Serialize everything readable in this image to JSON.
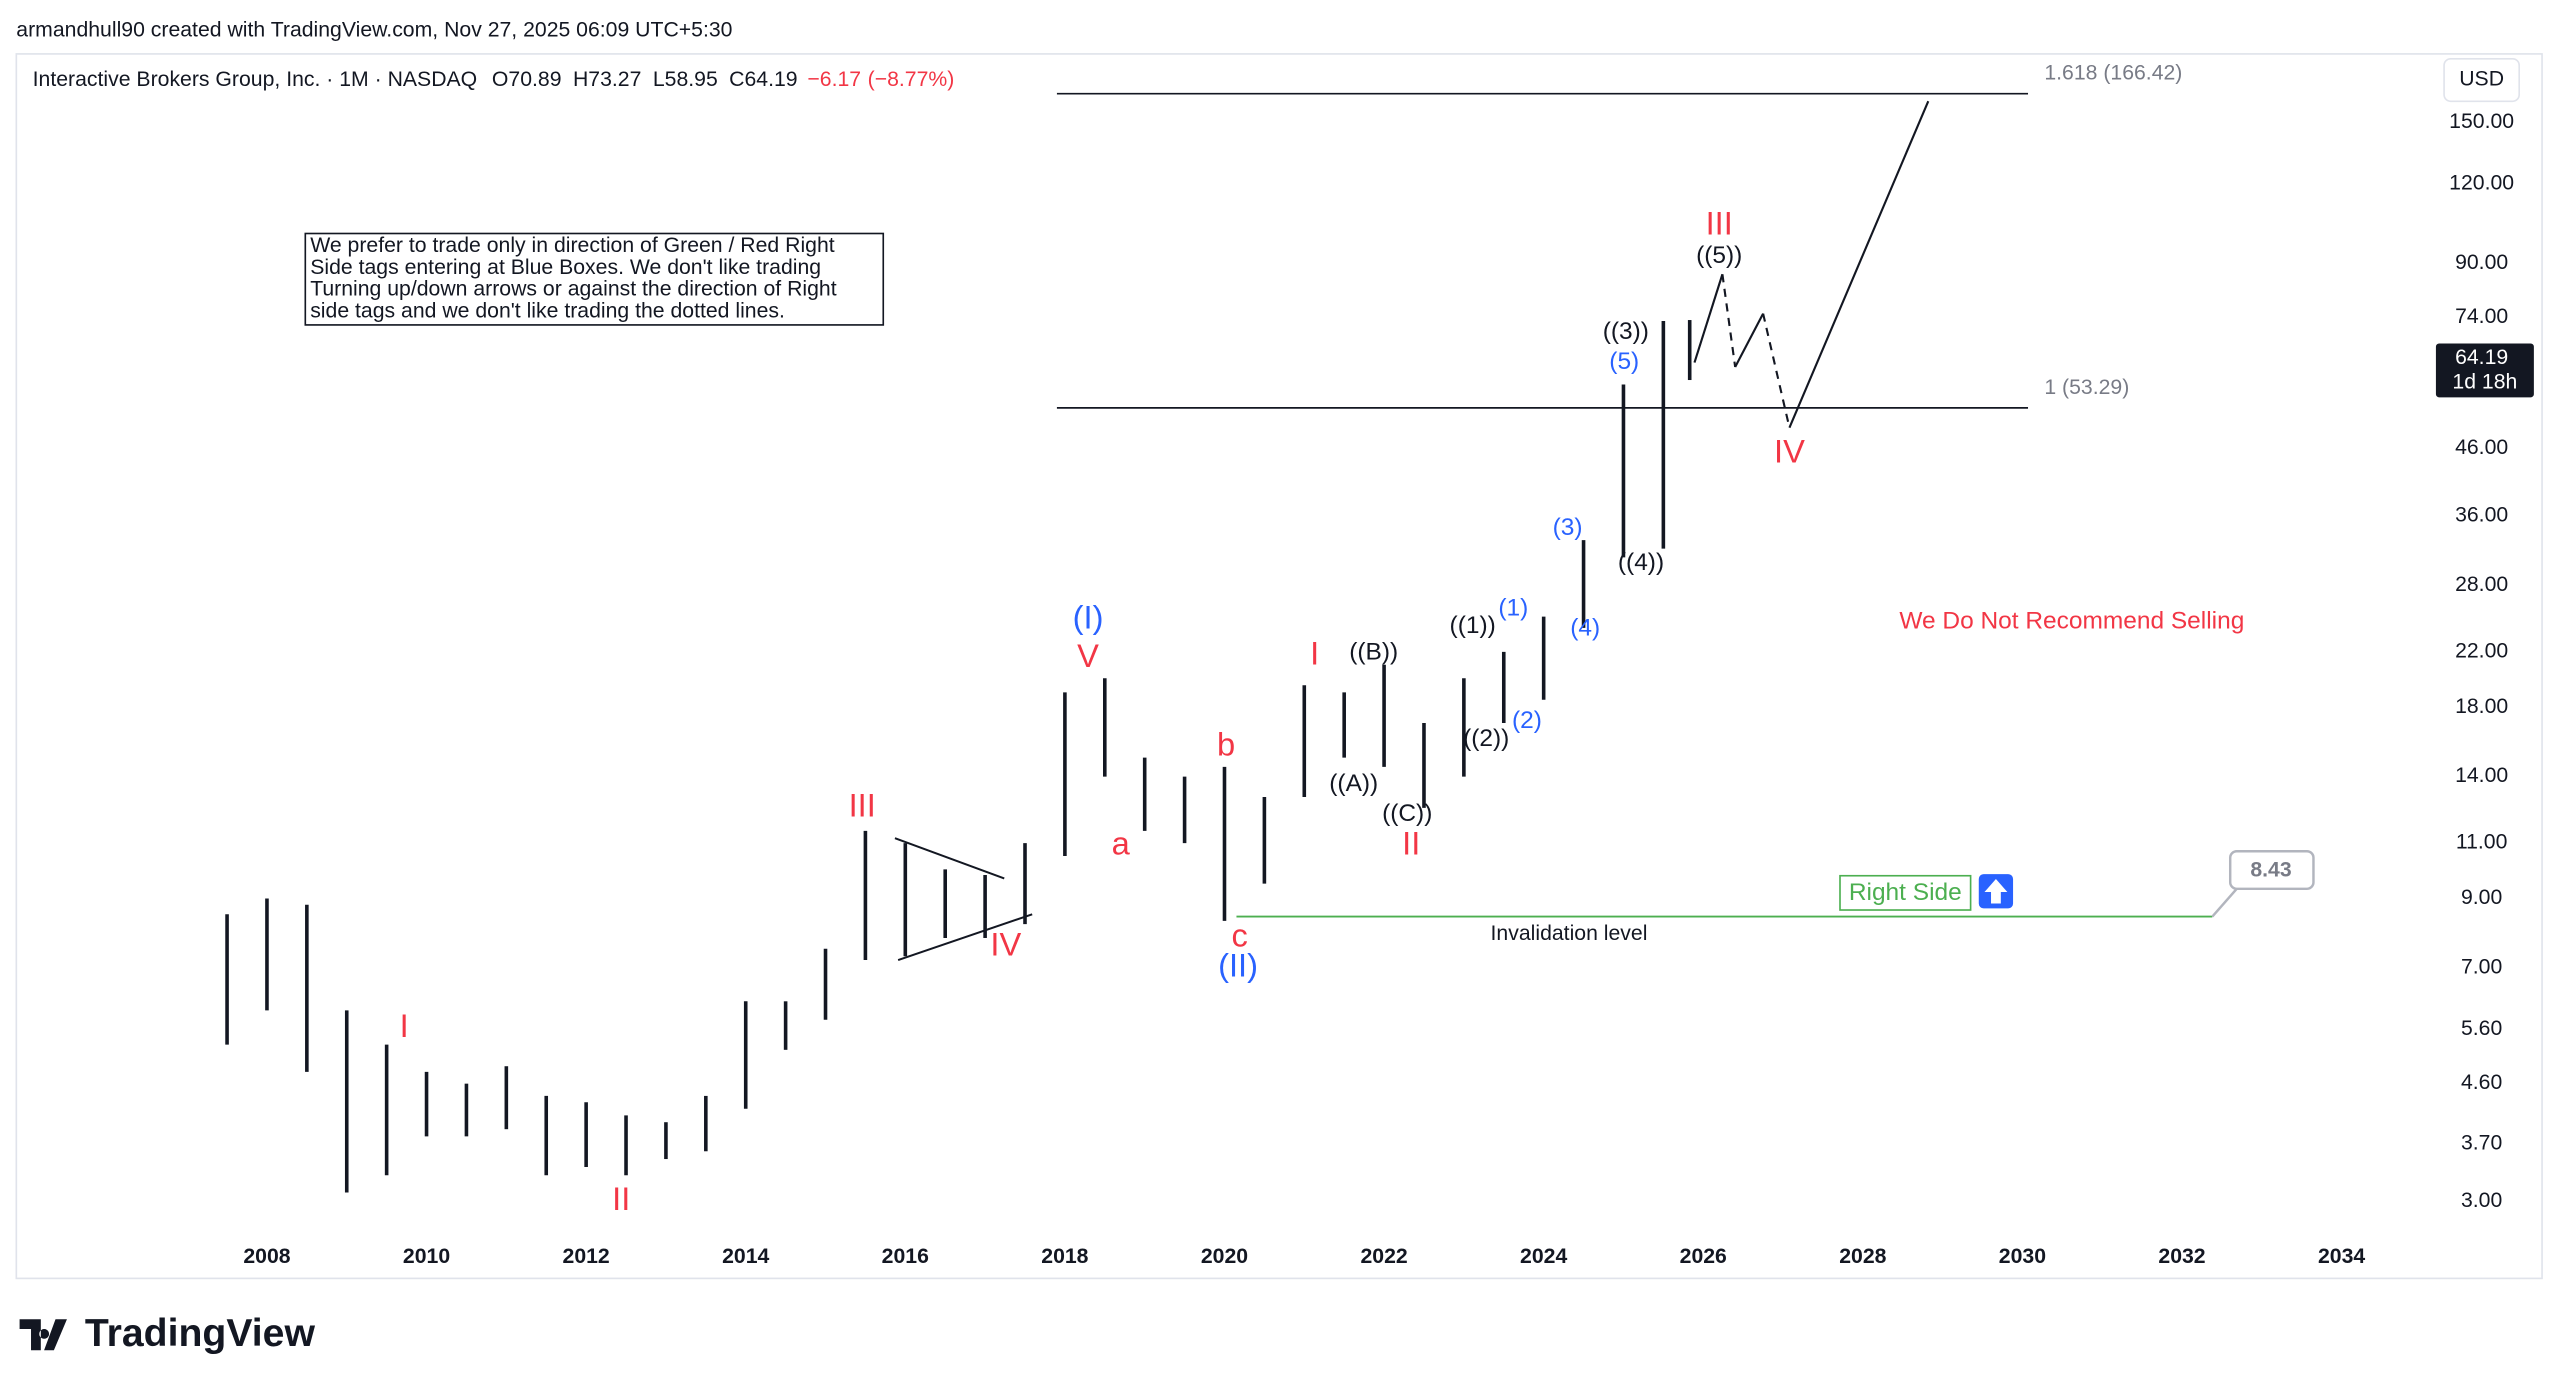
{
  "header": {
    "author": "armandhull90 created with TradingView.com, Nov 27, 2025 06:09 UTC+5:30",
    "brand": "TradingView"
  },
  "chart_data": {
    "type": "ohlc",
    "symbol": "Interactive Brokers Group, Inc. · 1M · NASDAQ",
    "legend_values": [
      {
        "label": "O",
        "value": 70.89
      },
      {
        "label": "H",
        "value": 73.27
      },
      {
        "label": "L",
        "value": 58.95
      },
      {
        "label": "C",
        "value": 64.19
      }
    ],
    "change": {
      "value": -6.17,
      "label": "−6.17"
    },
    "change_pct": {
      "value": -8.77,
      "label": "(−8.77%)"
    },
    "currency": "USD",
    "log_scale": true,
    "color": "#131722",
    "xlim": [
      2004.9,
      2035.1
    ],
    "xticks": [
      2008,
      2010,
      2012,
      2014,
      2016,
      2018,
      2020,
      2022,
      2024,
      2026,
      2028,
      2030,
      2032,
      2034
    ],
    "ylim": [
      2.68,
      190
    ],
    "yticks": [
      {
        "value": 150,
        "label": "150.00"
      },
      {
        "value": 120,
        "label": "120.00"
      },
      {
        "value": 90,
        "label": "90.00"
      },
      {
        "value": 74,
        "label": "74.00"
      },
      {
        "value": 46,
        "label": "46.00"
      },
      {
        "value": 36,
        "label": "36.00"
      },
      {
        "value": 28,
        "label": "28.00"
      },
      {
        "value": 22,
        "label": "22.00"
      },
      {
        "value": 18,
        "label": "18.00"
      },
      {
        "value": 14,
        "label": "14.00"
      },
      {
        "value": 11,
        "label": "11.00"
      },
      {
        "value": 9,
        "label": "9.00"
      },
      {
        "value": 7,
        "label": "7.00"
      },
      {
        "value": 5.6,
        "label": "5.60"
      },
      {
        "value": 4.6,
        "label": "4.60"
      },
      {
        "value": 3.7,
        "label": "3.70"
      },
      {
        "value": 3,
        "label": "3.00"
      }
    ],
    "x": [
      2007.5,
      2008.0,
      2008.5,
      2009.0,
      2009.5,
      2010.0,
      2010.5,
      2011.0,
      2011.5,
      2012.0,
      2012.5,
      2013.0,
      2013.5,
      2014.0,
      2014.5,
      2015.0,
      2015.5,
      2016.0,
      2016.5,
      2017.0,
      2017.5,
      2018.0,
      2018.5,
      2019.0,
      2019.5,
      2020.0,
      2020.5,
      2021.0,
      2021.5,
      2022.0,
      2022.5,
      2023.0,
      2023.5,
      2024.0,
      2024.5,
      2025.0,
      2025.5,
      2025.83
    ],
    "high": [
      8.5,
      9,
      8.8,
      6,
      5.3,
      4.8,
      4.6,
      4.9,
      4.4,
      4.3,
      4.1,
      4.0,
      4.4,
      6.2,
      6.2,
      7.5,
      11.5,
      11,
      10,
      9.8,
      11,
      19,
      20,
      15,
      14,
      14.5,
      13,
      19.5,
      19,
      21,
      17,
      20,
      22,
      25,
      33,
      58,
      73,
      73.27
    ],
    "low": [
      5.3,
      6,
      4.8,
      3.1,
      3.3,
      3.8,
      3.8,
      3.9,
      3.3,
      3.4,
      3.3,
      3.5,
      3.6,
      4.2,
      5.2,
      5.8,
      7.2,
      7.3,
      7.8,
      7.8,
      8.2,
      10.5,
      14,
      11.5,
      11,
      8.3,
      9.5,
      13,
      15,
      14.5,
      12.5,
      14,
      17,
      18.5,
      24,
      31,
      32,
      58.95
    ],
    "last_price": 64.19,
    "countdown": "1d 18h",
    "annotations": [
      {
        "text": "I",
        "x": 2009.72,
        "y": 5.62,
        "color": "#f23645"
      },
      {
        "text": "II",
        "x": 2012.44,
        "y": 3.0,
        "color": "#f23645"
      },
      {
        "text": "III",
        "x": 2015.46,
        "y": 12.5,
        "color": "#f23645"
      },
      {
        "text": "IV",
        "x": 2017.26,
        "y": 7.55,
        "color": "#f23645"
      },
      {
        "text": "V",
        "x": 2018.29,
        "y": 21.5,
        "color": "#f23645"
      },
      {
        "text": "(I)",
        "x": 2018.29,
        "y": 24.7,
        "color": "#2962ff"
      },
      {
        "text": "a",
        "x": 2018.7,
        "y": 10.9,
        "color": "#f23645"
      },
      {
        "text": "b",
        "x": 2020.02,
        "y": 15.6,
        "color": "#f23645"
      },
      {
        "text": "c",
        "x": 2020.19,
        "y": 7.8,
        "color": "#f23645"
      },
      {
        "text": "(II)",
        "x": 2020.17,
        "y": 7.0,
        "color": "#2962ff"
      },
      {
        "text": "I",
        "x": 2021.13,
        "y": 21.7,
        "color": "#f23645"
      },
      {
        "text": "((B))",
        "x": 2021.87,
        "y": 21.9,
        "color": "#131722"
      },
      {
        "text": "((A))",
        "x": 2021.62,
        "y": 13.6,
        "color": "#131722"
      },
      {
        "text": "((C))",
        "x": 2022.29,
        "y": 12.2,
        "color": "#131722"
      },
      {
        "text": "II",
        "x": 2022.34,
        "y": 10.9,
        "color": "#f23645"
      },
      {
        "text": "((1))",
        "x": 2023.11,
        "y": 24.1,
        "color": "#131722"
      },
      {
        "text": "(1)",
        "x": 2023.62,
        "y": 25.7,
        "color": "#2962ff"
      },
      {
        "text": "((2))",
        "x": 2023.28,
        "y": 16.0,
        "color": "#131722"
      },
      {
        "text": "(2)",
        "x": 2023.79,
        "y": 17.1,
        "color": "#2962ff"
      },
      {
        "text": "(3)",
        "x": 2024.3,
        "y": 34.4,
        "color": "#2962ff"
      },
      {
        "text": "(4)",
        "x": 2024.52,
        "y": 23.9,
        "color": "#2962ff"
      },
      {
        "text": "((4))",
        "x": 2025.22,
        "y": 30.3,
        "color": "#131722"
      },
      {
        "text": "(5)",
        "x": 2025.01,
        "y": 62.8,
        "color": "#2962ff"
      },
      {
        "text": "((3))",
        "x": 2025.03,
        "y": 70,
        "color": "#131722"
      },
      {
        "text": "((5))",
        "x": 2026.2,
        "y": 92.3,
        "color": "#131722"
      },
      {
        "text": "III",
        "x": 2026.2,
        "y": 103,
        "color": "#f23645"
      },
      {
        "text": "IV",
        "x": 2027.08,
        "y": 45.1,
        "color": "#f23645"
      }
    ],
    "projection": {
      "x": [
        2025.89,
        2026.24,
        2026.4,
        2026.75,
        2027.08,
        2028.82
      ],
      "y": [
        62.8,
        86.5,
        61.8,
        75,
        49.6,
        162
      ],
      "dashed": [
        false,
        true,
        false,
        true,
        false
      ]
    },
    "triangle_lines": [
      {
        "x": [
          2015.87,
          2017.24
        ],
        "y": [
          11.2,
          9.68
        ]
      },
      {
        "x": [
          2015.91,
          2017.59
        ],
        "y": [
          7.2,
          8.5
        ]
      }
    ],
    "fib_levels": [
      {
        "value": 166.42,
        "label": "1.618 (166.42)"
      },
      {
        "value": 53.29,
        "label": "1 (53.29)"
      }
    ],
    "fib_xrange": [
      2017.9,
      2030.07
    ],
    "invalidation": {
      "value": 8.43,
      "label": "Invalidation level",
      "xrange": [
        2020.15,
        2032.38
      ],
      "tag": "Right Side"
    },
    "note": [
      "We prefer to trade only in direction of Green / Red Right",
      "Side tags entering at Blue Boxes. We don't like trading",
      "Turning up/down arrows or against the direction of Right",
      "side tags and we don't like trading the dotted lines."
    ],
    "warning": "We Do Not Recommend Selling"
  }
}
